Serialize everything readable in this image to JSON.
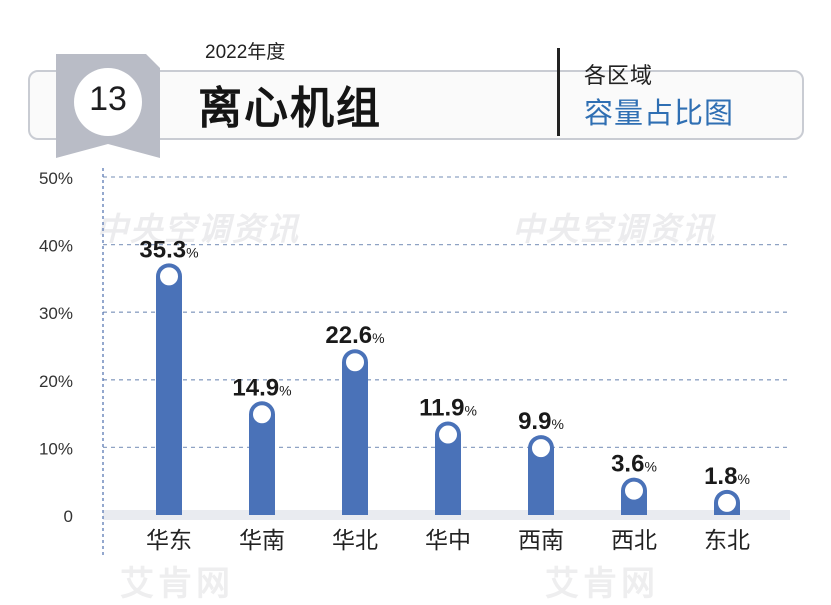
{
  "header": {
    "badge_number": "13",
    "year": "2022年度",
    "title": "离心机组",
    "subtitle_line1": "各区域",
    "subtitle_line2": "容量占比图"
  },
  "watermarks": {
    "top": "中央空调资讯",
    "bottom": "艾肯网"
  },
  "colors": {
    "bar": "#4a72b8",
    "accent_blue": "#2f6fb3",
    "grid": "#8fa3c4",
    "axis": "#5b79b3",
    "header_border": "#c9ccd3",
    "badge": "#b9bcc6"
  },
  "chart_data": {
    "type": "bar",
    "categories": [
      "华东",
      "华南",
      "华北",
      "华中",
      "西南",
      "西北",
      "东北"
    ],
    "values": [
      35.3,
      14.9,
      22.6,
      11.9,
      9.9,
      3.6,
      1.8
    ],
    "value_labels": [
      "35.3",
      "14.9",
      "22.6",
      "11.9",
      "9.9",
      "3.6",
      "1.8"
    ],
    "value_unit": "%",
    "yticks": [
      "0",
      "10%",
      "20%",
      "30%",
      "40%",
      "50%"
    ],
    "ylim": [
      0,
      50
    ],
    "grid": true,
    "grid_style": "dashed"
  }
}
